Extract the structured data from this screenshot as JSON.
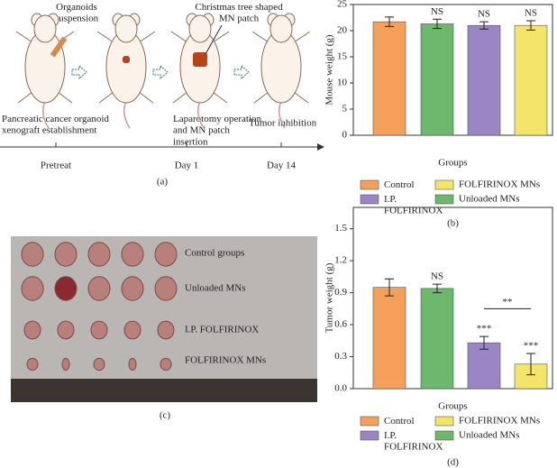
{
  "panel_a": {
    "organoids_label": "Organoids suspension",
    "patch_label": "Christmas tree shaped MN patch",
    "step1": "Pancreatic cancer organoid xenograft establishment",
    "step2": "Laparotomy operation and MN patch insertion",
    "step3": "Tumor inhibition",
    "timeline": [
      "Pretreat",
      "Day 1",
      "Day 14"
    ],
    "label": "(a)"
  },
  "panel_c": {
    "rows": [
      "Control groups",
      "Unloaded MNs",
      "I.P. FOLFIRINOX",
      "FOLFIRINOX MNs"
    ],
    "label": "(c)"
  },
  "chart_data": [
    {
      "type": "bar",
      "ylabel": "Mouse weight (g)",
      "xlabel": "Groups",
      "panel_label": "(b)",
      "ylim": [
        0,
        25
      ],
      "yticks": [
        0,
        5,
        10,
        15,
        20,
        25
      ],
      "bars": [
        {
          "name": "Control",
          "color": "#f5a05a",
          "value": 21.7,
          "error": 0.9,
          "annotation": null
        },
        {
          "name": "Unloaded MNs",
          "color": "#6cb86c",
          "value": 21.3,
          "error": 0.9,
          "annotation": "NS"
        },
        {
          "name": "I.P. FOLFIRINOX",
          "color": "#9b85c4",
          "value": 21.0,
          "error": 0.7,
          "annotation": "NS"
        },
        {
          "name": "FOLFIRINOX MNs",
          "color": "#f3e46a",
          "value": 21.0,
          "error": 0.9,
          "annotation": "NS"
        }
      ]
    },
    {
      "type": "bar",
      "ylabel": "Tumor weight (g)",
      "xlabel": "Groups",
      "panel_label": "(d)",
      "ylim": [
        0,
        1.7
      ],
      "yticks": [
        {
          "value": 0,
          "label": "0.0"
        },
        0.3,
        0.6,
        0.9,
        1.2,
        1.5
      ],
      "bars": [
        {
          "name": "Control",
          "color": "#f5a05a",
          "value": 0.95,
          "error": 0.08,
          "annotation": null
        },
        {
          "name": "Unloaded MNs",
          "color": "#6cb86c",
          "value": 0.94,
          "error": 0.04,
          "annotation": "NS"
        },
        {
          "name": "I.P. FOLFIRINOX",
          "color": "#9b85c4",
          "value": 0.43,
          "error": 0.06,
          "annotation": "***"
        },
        {
          "name": "FOLFIRINOX MNs",
          "color": "#f3e46a",
          "value": 0.23,
          "error": 0.1,
          "annotation": "***"
        }
      ],
      "bracket": {
        "label": "**",
        "y": 0.75
      }
    }
  ]
}
